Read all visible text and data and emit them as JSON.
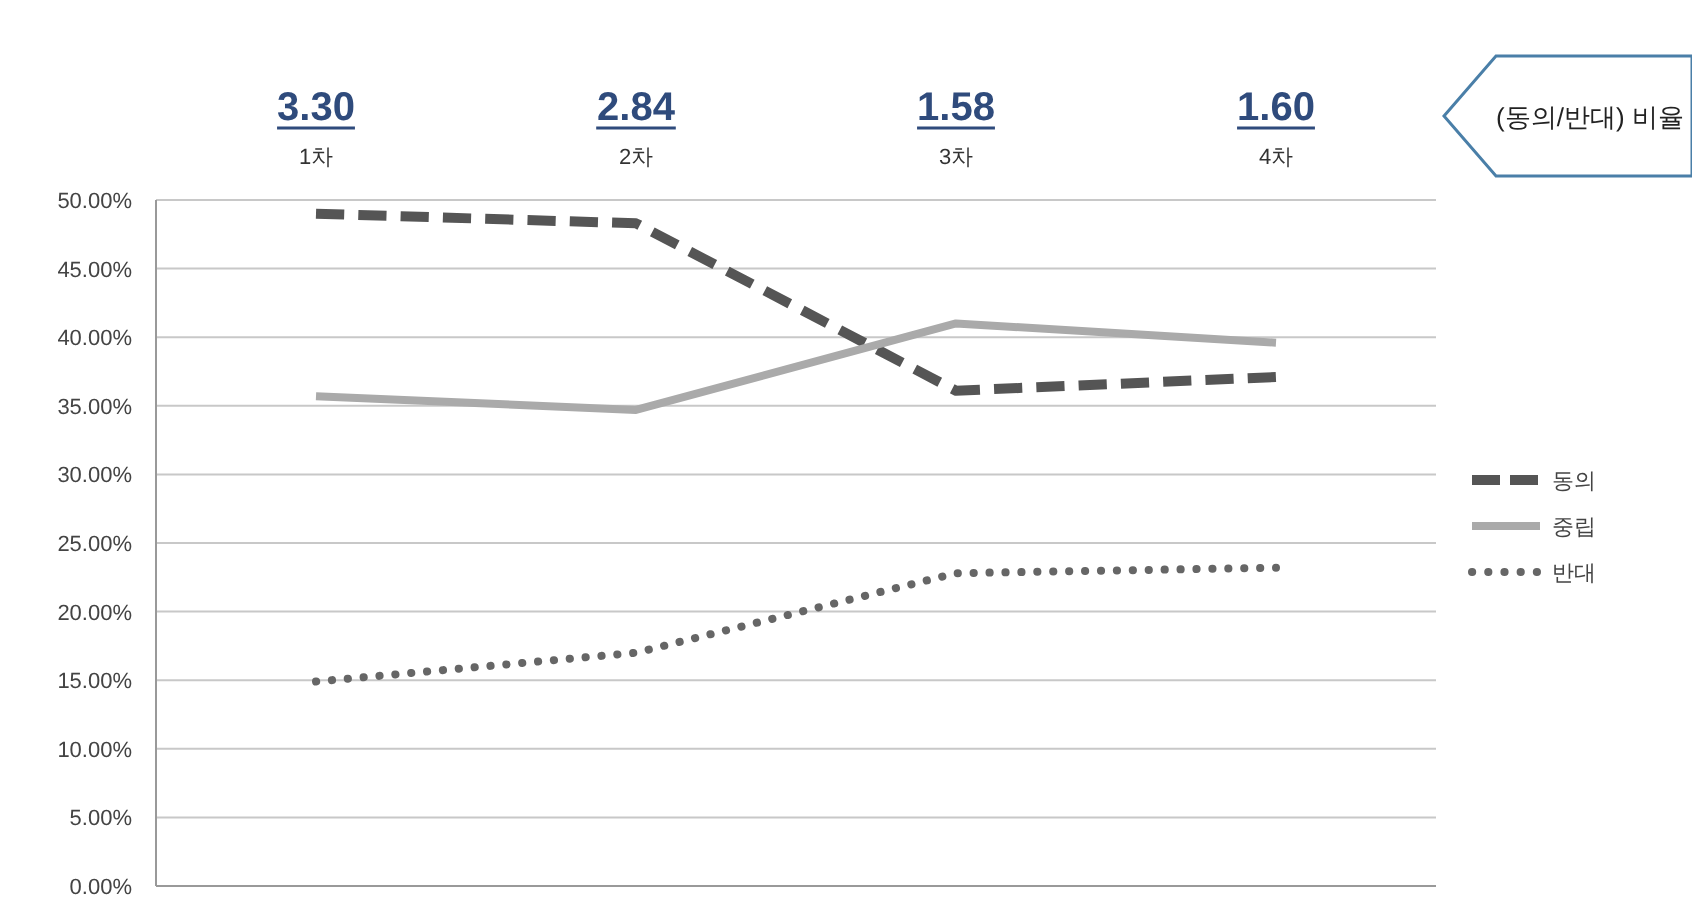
{
  "chart_data": {
    "type": "line",
    "categories": [
      "1차",
      "2차",
      "3차",
      "4차"
    ],
    "series": [
      {
        "name": "동의",
        "color": "#555555",
        "line_style": "dashed",
        "values": [
          49.0,
          48.3,
          36.1,
          37.1
        ]
      },
      {
        "name": "중립",
        "color": "#aaaaaa",
        "line_style": "solid",
        "values": [
          35.7,
          34.7,
          41.0,
          39.6
        ]
      },
      {
        "name": "반대",
        "color": "#666666",
        "line_style": "dotted",
        "values": [
          14.9,
          17.0,
          22.8,
          23.2
        ]
      }
    ],
    "ylim": [
      0,
      50
    ],
    "yticks": [
      {
        "value": 0,
        "label": "0.00%"
      },
      {
        "value": 5,
        "label": "5.00%"
      },
      {
        "value": 10,
        "label": "10.00%"
      },
      {
        "value": 15,
        "label": "15.00%"
      },
      {
        "value": 20,
        "label": "20.00%"
      },
      {
        "value": 25,
        "label": "25.00%"
      },
      {
        "value": 30,
        "label": "30.00%"
      },
      {
        "value": 35,
        "label": "35.00%"
      },
      {
        "value": 40,
        "label": "40.00%"
      },
      {
        "value": 45,
        "label": "45.00%"
      },
      {
        "value": 50,
        "label": "50.00%"
      }
    ],
    "grid": "y",
    "legend": "right",
    "annotations": [
      "3.30",
      "2.84",
      "1.58",
      "1.60",
      "(동의/반대) 비율"
    ]
  }
}
